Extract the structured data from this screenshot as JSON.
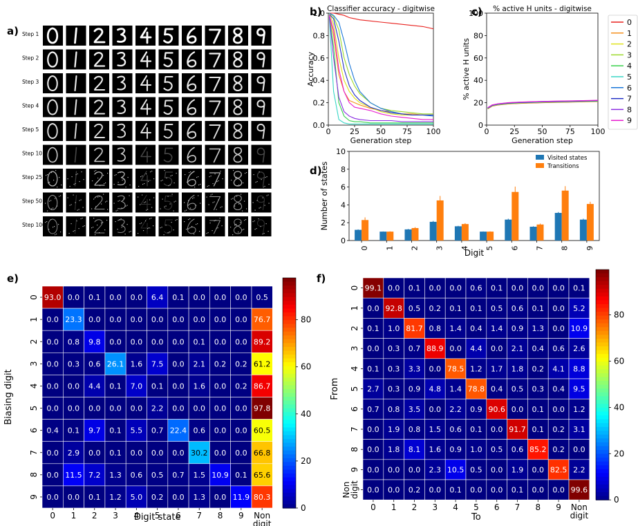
{
  "panel_letters": [
    "a)",
    "b)",
    "c)",
    "d)",
    "e)",
    "f)"
  ],
  "panel_a": {
    "row_labels": [
      "Step 1",
      "Step 2",
      "Step 3",
      "Step 4",
      "Step 5",
      "Step 10",
      "Step 25",
      "Step 50",
      "Step 100"
    ],
    "digits": [
      "0",
      "1",
      "2",
      "3",
      "4",
      "5",
      "6",
      "7",
      "8",
      "9"
    ]
  },
  "colors": {
    "series": [
      "#e8201d",
      "#f6901c",
      "#dfe21a",
      "#9bd92a",
      "#36d14a",
      "#38d6c6",
      "#1a76d8",
      "#2230c6",
      "#8a2be2",
      "#e81ccf"
    ],
    "bar_visited": "#1f77b4",
    "bar_transitions": "#ff7f0e",
    "heatmap_scale": "jet"
  },
  "chart_data": [
    {
      "id": "b",
      "type": "line",
      "title": "Classifier accuracy - digitwise",
      "xlabel": "Generation step",
      "ylabel": "Accuracy",
      "xlim": [
        0,
        100
      ],
      "ylim": [
        0,
        1.0
      ],
      "xticks": [
        "0",
        "25",
        "50",
        "75",
        "100"
      ],
      "yticks": [
        "0.0",
        "0.2",
        "0.4",
        "0.6",
        "0.8",
        "1.0"
      ],
      "x": [
        1,
        5,
        10,
        15,
        20,
        25,
        30,
        40,
        50,
        60,
        70,
        80,
        90,
        100
      ],
      "series": [
        {
          "name": "0",
          "values": [
            1.0,
            1.0,
            0.99,
            0.98,
            0.96,
            0.95,
            0.94,
            0.93,
            0.92,
            0.91,
            0.9,
            0.89,
            0.88,
            0.86
          ]
        },
        {
          "name": "1",
          "values": [
            0.98,
            0.8,
            0.45,
            0.3,
            0.22,
            0.2,
            0.18,
            0.15,
            0.13,
            0.12,
            0.1,
            0.1,
            0.09,
            0.09
          ]
        },
        {
          "name": "2",
          "values": [
            1.0,
            0.9,
            0.6,
            0.4,
            0.3,
            0.24,
            0.2,
            0.16,
            0.12,
            0.1,
            0.09,
            0.09,
            0.09,
            0.09
          ]
        },
        {
          "name": "3",
          "values": [
            1.0,
            0.97,
            0.85,
            0.6,
            0.45,
            0.35,
            0.28,
            0.2,
            0.15,
            0.13,
            0.12,
            0.11,
            0.1,
            0.1
          ]
        },
        {
          "name": "4",
          "values": [
            0.97,
            0.7,
            0.2,
            0.08,
            0.04,
            0.03,
            0.03,
            0.02,
            0.02,
            0.02,
            0.02,
            0.02,
            0.02,
            0.02
          ]
        },
        {
          "name": "5",
          "values": [
            0.95,
            0.3,
            0.05,
            0.02,
            0.01,
            0.01,
            0.01,
            0.01,
            0.01,
            0.01,
            0.01,
            0.01,
            0.01,
            0.01
          ]
        },
        {
          "name": "6",
          "values": [
            1.0,
            0.98,
            0.92,
            0.75,
            0.55,
            0.4,
            0.3,
            0.2,
            0.15,
            0.12,
            0.1,
            0.09,
            0.09,
            0.08
          ]
        },
        {
          "name": "7",
          "values": [
            0.99,
            0.95,
            0.75,
            0.5,
            0.35,
            0.27,
            0.22,
            0.16,
            0.13,
            0.11,
            0.1,
            0.09,
            0.09,
            0.09
          ]
        },
        {
          "name": "8",
          "values": [
            0.97,
            0.6,
            0.25,
            0.12,
            0.08,
            0.06,
            0.05,
            0.04,
            0.04,
            0.04,
            0.03,
            0.03,
            0.03,
            0.03
          ]
        },
        {
          "name": "9",
          "values": [
            0.98,
            0.85,
            0.5,
            0.3,
            0.2,
            0.16,
            0.15,
            0.13,
            0.1,
            0.08,
            0.07,
            0.06,
            0.05,
            0.05
          ]
        }
      ]
    },
    {
      "id": "c",
      "type": "line",
      "title": "% active H units - digitwise",
      "xlabel": "Generation step",
      "ylabel": "% active H units",
      "xlim": [
        0,
        100
      ],
      "ylim": [
        0,
        100
      ],
      "xticks": [
        "0",
        "25",
        "50",
        "75",
        "100"
      ],
      "yticks": [
        "0",
        "20",
        "40",
        "60",
        "80",
        "100"
      ],
      "x": [
        1,
        5,
        10,
        20,
        30,
        40,
        50,
        60,
        70,
        80,
        90,
        100
      ],
      "series_values": [
        15,
        17.5,
        18.5,
        19.5,
        20,
        20.3,
        20.6,
        20.8,
        21,
        21.2,
        21.4,
        21.6
      ],
      "legend": [
        "0",
        "1",
        "2",
        "3",
        "4",
        "5",
        "6",
        "7",
        "8",
        "9"
      ]
    },
    {
      "id": "d",
      "type": "bar",
      "xlabel": "Digit",
      "ylabel": "Number of states",
      "ylim": [
        0,
        10
      ],
      "yticks": [
        "0",
        "2",
        "4",
        "6",
        "8",
        "10"
      ],
      "categories": [
        "0",
        "1",
        "2",
        "3",
        "4",
        "5",
        "6",
        "7",
        "8",
        "9"
      ],
      "series": [
        {
          "name": "Visited states",
          "values": [
            1.2,
            1.0,
            1.25,
            2.1,
            1.6,
            1.0,
            2.35,
            1.55,
            3.1,
            2.35
          ],
          "errors": [
            0.05,
            0.02,
            0.05,
            0.1,
            0.05,
            0.02,
            0.1,
            0.05,
            0.1,
            0.1
          ]
        },
        {
          "name": "Transitions",
          "values": [
            2.3,
            1.0,
            1.4,
            4.5,
            1.85,
            1.0,
            5.45,
            1.8,
            5.6,
            4.1
          ],
          "errors": [
            0.3,
            0.03,
            0.1,
            0.5,
            0.1,
            0.03,
            0.6,
            0.1,
            0.5,
            0.25
          ]
        }
      ]
    },
    {
      "id": "e",
      "type": "heatmap",
      "xlabel": "Digit state",
      "ylabel": "Biasing digit",
      "xcats": [
        "0",
        "1",
        "2",
        "3",
        "4",
        "5",
        "6",
        "7",
        "8",
        "9",
        "Non digit"
      ],
      "ycats": [
        "0",
        "1",
        "2",
        "3",
        "4",
        "5",
        "6",
        "7",
        "8",
        "9"
      ],
      "colorbar_ticks": [
        "0",
        "20",
        "40",
        "60",
        "80"
      ],
      "vmax": 97.8,
      "values": [
        [
          "93.0",
          "0.0",
          "0.1",
          "0.0",
          "0.0",
          "6.4",
          "0.1",
          "0.0",
          "0.0",
          "0.0",
          "0.5"
        ],
        [
          "0.0",
          "23.3",
          "0.0",
          "0.0",
          "0.0",
          "0.0",
          "0.0",
          "0.0",
          "0.0",
          "0.0",
          "76.7"
        ],
        [
          "0.0",
          "0.8",
          "9.8",
          "0.0",
          "0.0",
          "0.0",
          "0.0",
          "0.1",
          "0.0",
          "0.0",
          "89.2"
        ],
        [
          "0.0",
          "0.3",
          "0.6",
          "26.1",
          "1.6",
          "7.5",
          "0.0",
          "2.1",
          "0.2",
          "0.2",
          "61.2"
        ],
        [
          "0.0",
          "0.0",
          "4.4",
          "0.1",
          "7.0",
          "0.1",
          "0.0",
          "1.6",
          "0.0",
          "0.2",
          "86.7"
        ],
        [
          "0.0",
          "0.0",
          "0.0",
          "0.0",
          "0.0",
          "2.2",
          "0.0",
          "0.0",
          "0.0",
          "0.0",
          "97.8"
        ],
        [
          "0.4",
          "0.1",
          "9.7",
          "0.1",
          "5.5",
          "0.7",
          "22.4",
          "0.6",
          "0.0",
          "0.0",
          "60.5"
        ],
        [
          "0.0",
          "2.9",
          "0.0",
          "0.1",
          "0.0",
          "0.0",
          "0.0",
          "30.2",
          "0.0",
          "0.0",
          "66.8"
        ],
        [
          "0.0",
          "11.5",
          "7.2",
          "1.3",
          "0.6",
          "0.5",
          "0.7",
          "1.5",
          "10.9",
          "0.1",
          "65.6"
        ],
        [
          "0.0",
          "0.0",
          "0.1",
          "1.2",
          "5.0",
          "0.2",
          "0.0",
          "1.3",
          "0.0",
          "11.9",
          "80.3"
        ]
      ]
    },
    {
      "id": "f",
      "type": "heatmap",
      "xlabel": "To",
      "ylabel": "From",
      "xcats": [
        "0",
        "1",
        "2",
        "3",
        "4",
        "5",
        "6",
        "7",
        "8",
        "9",
        "Non digit"
      ],
      "ycats": [
        "0",
        "1",
        "2",
        "3",
        "4",
        "5",
        "6",
        "7",
        "8",
        "9",
        "Non digit"
      ],
      "colorbar_ticks": [
        "0",
        "20",
        "40",
        "60",
        "80"
      ],
      "vmax": 99.6,
      "values": [
        [
          "99.1",
          "0.0",
          "0.1",
          "0.0",
          "0.0",
          "0.6",
          "0.1",
          "0.0",
          "0.0",
          "0.0",
          "0.1"
        ],
        [
          "0.0",
          "92.8",
          "0.5",
          "0.2",
          "0.1",
          "0.1",
          "0.5",
          "0.6",
          "0.1",
          "0.0",
          "5.2"
        ],
        [
          "0.1",
          "1.0",
          "81.7",
          "0.8",
          "1.4",
          "0.4",
          "1.4",
          "0.9",
          "1.3",
          "0.0",
          "10.9"
        ],
        [
          "0.0",
          "0.3",
          "0.7",
          "88.9",
          "0.0",
          "4.4",
          "0.0",
          "2.1",
          "0.4",
          "0.6",
          "2.6"
        ],
        [
          "0.1",
          "0.3",
          "3.3",
          "0.0",
          "78.5",
          "1.2",
          "1.7",
          "1.8",
          "0.2",
          "4.1",
          "8.8"
        ],
        [
          "2.7",
          "0.3",
          "0.9",
          "4.8",
          "1.4",
          "78.8",
          "0.4",
          "0.5",
          "0.3",
          "0.4",
          "9.5"
        ],
        [
          "0.7",
          "0.8",
          "3.5",
          "0.0",
          "2.2",
          "0.9",
          "90.6",
          "0.0",
          "0.1",
          "0.0",
          "1.2"
        ],
        [
          "0.0",
          "1.9",
          "0.8",
          "1.5",
          "0.6",
          "0.1",
          "0.0",
          "91.7",
          "0.1",
          "0.2",
          "3.1"
        ],
        [
          "0.0",
          "1.8",
          "8.1",
          "1.6",
          "0.9",
          "1.0",
          "0.5",
          "0.6",
          "85.2",
          "0.2",
          "0.0"
        ],
        [
          "0.0",
          "0.0",
          "0.0",
          "2.3",
          "10.5",
          "0.5",
          "0.0",
          "1.9",
          "0.0",
          "82.5",
          "2.2"
        ],
        [
          "0.0",
          "0.0",
          "0.2",
          "0.0",
          "0.1",
          "0.0",
          "0.0",
          "0.1",
          "0.0",
          "0.0",
          "99.6"
        ]
      ]
    }
  ]
}
